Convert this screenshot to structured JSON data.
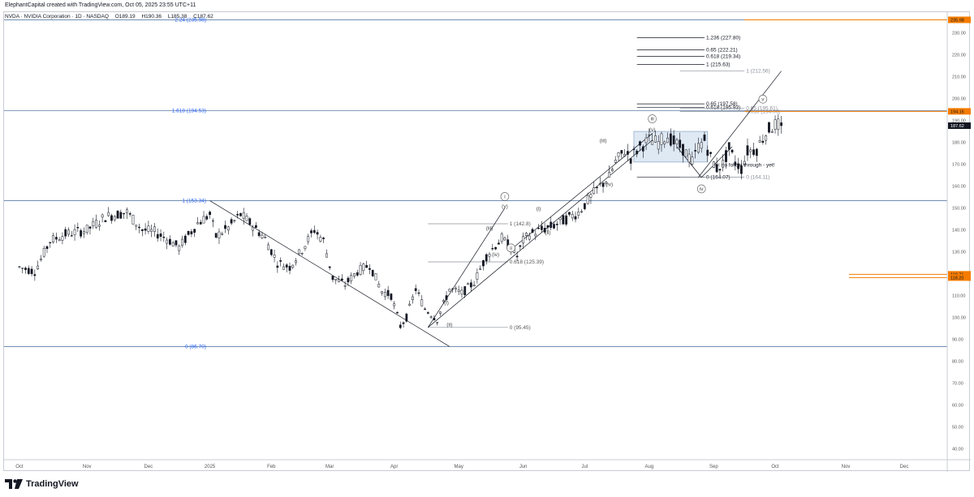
{
  "header": {
    "creator_line": "ElephantCapital created with TradingView.com, Oct 05, 2025 23:55 UTC+11"
  },
  "symbol": {
    "name": "NVDA · NVIDIA Corporation · 1D · NASDAQ",
    "open": "O189.19",
    "high": "H190.36",
    "low": "L185.38",
    "close": "C187.62"
  },
  "footer": {
    "brand": "TradingView",
    "logo_icon": "tradingview-logo-icon"
  },
  "colors": {
    "up": "#131722",
    "down": "#131722",
    "fib": "#2962ff",
    "fib_line": "#5b7fa8",
    "price_tag": "#f57c00",
    "current_tag": "#131722",
    "box": "#d7e3f1"
  },
  "chart_data": {
    "type": "candlestick",
    "title": "NVDA · NVIDIA Corporation · 1D · NASDAQ",
    "ylabel": "USD",
    "xlabel": "",
    "ylim": [
      35,
      238
    ],
    "y_ticks": [
      40,
      50,
      60,
      70,
      80,
      90,
      100,
      110,
      120,
      130,
      140,
      150,
      160,
      170,
      180,
      190,
      200,
      210,
      220,
      230
    ],
    "x_ticks": [
      {
        "label": "Oct",
        "t": 0
      },
      {
        "label": "Nov",
        "t": 22
      },
      {
        "label": "Dec",
        "t": 42
      },
      {
        "label": "2025",
        "t": 62
      },
      {
        "label": "Feb",
        "t": 82
      },
      {
        "label": "Mar",
        "t": 101
      },
      {
        "label": "Apr",
        "t": 122
      },
      {
        "label": "May",
        "t": 143
      },
      {
        "label": "Jun",
        "t": 164
      },
      {
        "label": "Jul",
        "t": 184
      },
      {
        "label": "Aug",
        "t": 205
      },
      {
        "label": "Sep",
        "t": 226
      },
      {
        "label": "Oct",
        "t": 246
      },
      {
        "label": "Nov",
        "t": 269
      },
      {
        "label": "Dec",
        "t": 288
      }
    ],
    "x_range": [
      -5,
      302
    ],
    "key_points": [
      [
        0,
        123
      ],
      [
        5,
        121
      ],
      [
        10,
        135
      ],
      [
        15,
        138
      ],
      [
        22,
        140
      ],
      [
        28,
        146
      ],
      [
        35,
        148
      ],
      [
        40,
        140
      ],
      [
        44,
        139
      ],
      [
        48,
        136
      ],
      [
        52,
        132
      ],
      [
        58,
        143
      ],
      [
        62,
        147
      ],
      [
        64,
        137
      ],
      [
        68,
        141
      ],
      [
        72,
        147
      ],
      [
        76,
        142
      ],
      [
        80,
        136
      ],
      [
        84,
        125
      ],
      [
        88,
        123
      ],
      [
        92,
        131
      ],
      [
        96,
        140
      ],
      [
        99,
        135
      ],
      [
        102,
        118
      ],
      [
        106,
        115
      ],
      [
        110,
        121
      ],
      [
        114,
        124
      ],
      [
        118,
        112
      ],
      [
        121,
        110
      ],
      [
        124,
        96
      ],
      [
        126,
        100
      ],
      [
        129,
        113
      ],
      [
        132,
        104
      ],
      [
        136,
        99
      ],
      [
        140,
        113
      ],
      [
        144,
        111
      ],
      [
        148,
        116
      ],
      [
        152,
        128
      ],
      [
        155,
        133
      ],
      [
        157,
        136
      ],
      [
        160,
        132
      ],
      [
        162,
        128
      ],
      [
        164,
        135
      ],
      [
        166,
        138
      ],
      [
        170,
        140
      ],
      [
        174,
        142
      ],
      [
        178,
        145
      ],
      [
        182,
        148
      ],
      [
        186,
        155
      ],
      [
        189,
        160
      ],
      [
        192,
        164
      ],
      [
        194,
        171
      ],
      [
        197,
        176
      ],
      [
        199,
        173
      ],
      [
        202,
        178
      ],
      [
        205,
        181
      ],
      [
        208,
        180
      ],
      [
        211,
        183
      ],
      [
        213,
        180
      ],
      [
        216,
        177
      ],
      [
        219,
        171
      ],
      [
        221,
        178
      ],
      [
        223,
        181
      ],
      [
        225,
        173
      ],
      [
        227,
        168
      ],
      [
        229,
        170
      ],
      [
        231,
        177
      ],
      [
        233,
        171
      ],
      [
        235,
        168
      ],
      [
        237,
        176
      ],
      [
        240,
        177
      ],
      [
        242,
        182
      ],
      [
        244,
        186
      ],
      [
        246,
        188
      ],
      [
        248,
        187.62
      ]
    ],
    "last_price": 187.62,
    "fib_levels": [
      {
        "label": "2.24 (235.98)",
        "value": 235.98
      },
      {
        "label": "1.618 (194.53)",
        "value": 194.53
      },
      {
        "label": "1 (153.34)",
        "value": 153.34
      },
      {
        "label": "0 (86.70)",
        "value": 86.7
      }
    ],
    "fib_set_2": [
      {
        "label": "1.236 (227.80)",
        "value": 227.8
      },
      {
        "label": "0.65 (222.21)",
        "value": 222.21
      },
      {
        "label": "0.618 (219.34)",
        "value": 219.34
      },
      {
        "label": "1 (215.63)",
        "value": 215.63
      },
      {
        "label": "0.65 (197.58)",
        "value": 197.58
      },
      {
        "label": "0.618 (195.93)",
        "value": 195.93
      },
      {
        "label": "0 (164.07)",
        "value": 164.07
      }
    ],
    "fib_set_3": [
      {
        "label": "1 (212.56)",
        "value": 212.56
      },
      {
        "label": "0.65 (195.61)",
        "value": 195.61
      },
      {
        "label": "0.618 (194.06)",
        "value": 194.06
      },
      {
        "label": "0 (164.11)",
        "value": 164.11
      }
    ],
    "fib_set_4": [
      {
        "label": "1 (142.8)",
        "value": 142.8
      },
      {
        "label": "0.618 (125.39)",
        "value": 125.39
      },
      {
        "label": "0 (95.45)",
        "value": 95.45
      }
    ],
    "price_tags": [
      {
        "label": "235.98",
        "value": 235.98,
        "kind": "orange"
      },
      {
        "label": "194.16",
        "value": 194.16,
        "kind": "orange"
      },
      {
        "label": "187.62",
        "value": 187.62,
        "kind": "current"
      },
      {
        "label": "119.71",
        "value": 119.71,
        "kind": "orange"
      },
      {
        "label": "118.20",
        "value": 118.2,
        "kind": "orange"
      }
    ],
    "wave_labels": [
      {
        "text": "(i)",
        "t": 139,
        "v": 106
      },
      {
        "text": "(ii)",
        "t": 140,
        "v": 96
      },
      {
        "text": "(iii)",
        "t": 153,
        "v": 140
      },
      {
        "text": "(iv)",
        "t": 155,
        "v": 128
      },
      {
        "text": "(v)",
        "t": 158,
        "v": 150
      },
      {
        "text": "i",
        "t": 158,
        "v": 154.5,
        "circled": true
      },
      {
        "text": "ii",
        "t": 160,
        "v": 131,
        "circled": true
      },
      {
        "text": "(i)",
        "t": 169,
        "v": 149
      },
      {
        "text": "(ii)",
        "t": 172,
        "v": 138
      },
      {
        "text": "(iii)",
        "t": 190,
        "v": 180
      },
      {
        "text": "(iv)",
        "t": 192,
        "v": 160
      },
      {
        "text": "iii",
        "t": 206,
        "v": 190,
        "circled": true
      },
      {
        "text": "(v)",
        "t": 206,
        "v": 185
      },
      {
        "text": "iv",
        "t": 222,
        "v": 158,
        "circled": true
      },
      {
        "text": "v",
        "t": 242,
        "v": 199,
        "circled": true
      }
    ],
    "annotations": [
      {
        "text": "<< no follow through - yet!",
        "t": 226,
        "v": 169
      }
    ]
  }
}
